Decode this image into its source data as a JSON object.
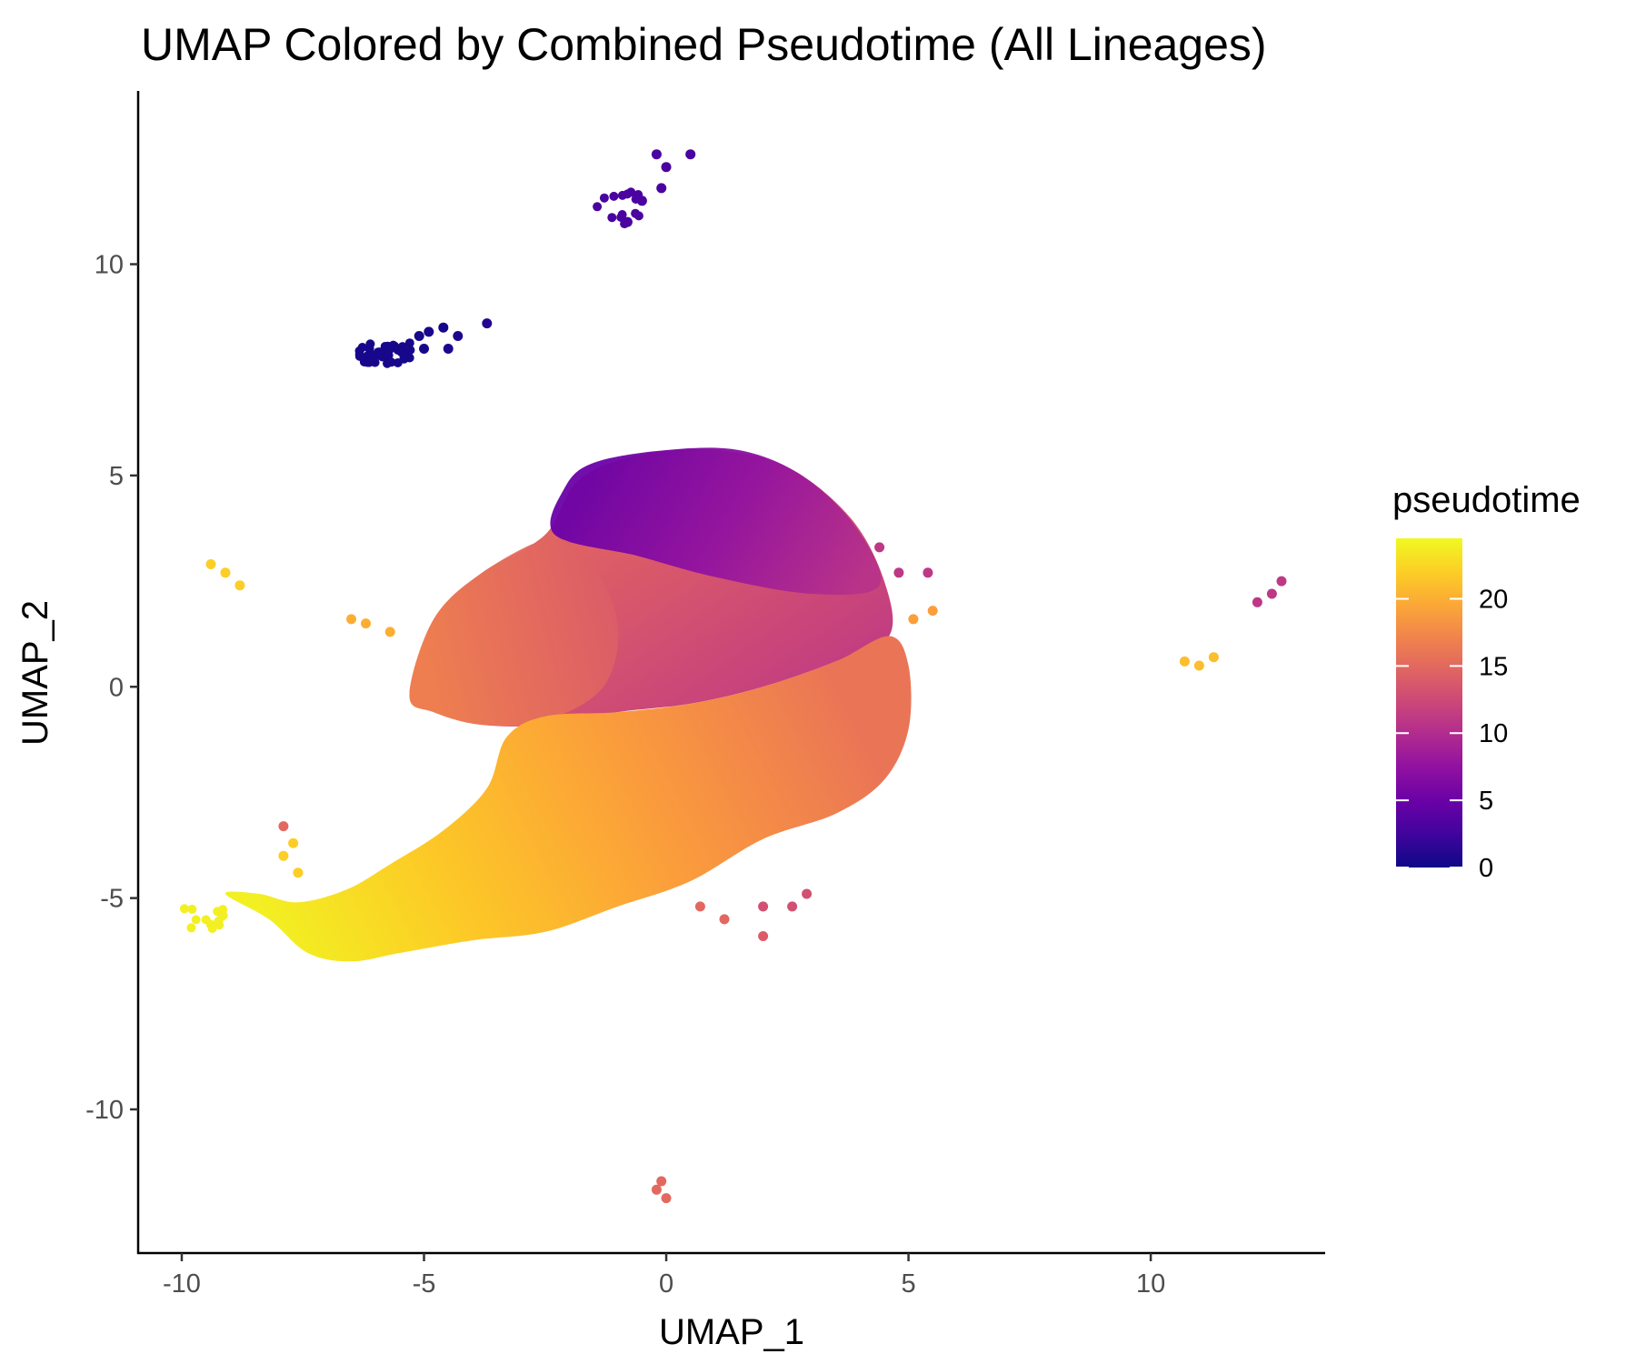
{
  "chart_data": {
    "type": "scatter",
    "title": "UMAP Colored by Combined Pseudotime (All Lineages)",
    "xlabel": "UMAP_1",
    "ylabel": "UMAP_2",
    "xlim": [
      -10.9,
      13.6
    ],
    "ylim": [
      -13.4,
      14.1
    ],
    "x_ticks": [
      -10,
      -5,
      0,
      5,
      10
    ],
    "x_tick_labels": [
      "-10",
      "-5",
      "0",
      "5",
      "10"
    ],
    "y_ticks": [
      -10,
      -5,
      0,
      5,
      10
    ],
    "y_tick_labels": [
      "-10",
      "-5",
      "0",
      "5",
      "10"
    ],
    "grid": false,
    "legend": {
      "title": "pseudotime",
      "placement": "right",
      "range": [
        0,
        24.5
      ],
      "ticks": [
        0,
        5,
        10,
        15,
        20
      ],
      "tick_labels": [
        "0",
        "5",
        "10",
        "15",
        "20"
      ]
    },
    "colormap": "plasma",
    "colormap_stops": [
      "#0d0887",
      "#46039f",
      "#7201a8",
      "#9c179e",
      "#bd3786",
      "#d8576b",
      "#ed7953",
      "#fb9f3a",
      "#fdca26",
      "#f0f921"
    ],
    "regions": [
      {
        "name": "main-cloud",
        "description_points": [
          {
            "x": -7.3,
            "y": -6.2,
            "pseudotime": 24
          },
          {
            "x": -5.0,
            "y": -4.8,
            "pseudotime": 21
          },
          {
            "x": -2.5,
            "y": -2.5,
            "pseudotime": 19
          },
          {
            "x": 0.0,
            "y": -1.0,
            "pseudotime": 17
          },
          {
            "x": 3.5,
            "y": -1.0,
            "pseudotime": 16
          },
          {
            "x": -4.0,
            "y": 1.0,
            "pseudotime": 15
          },
          {
            "x": 0.5,
            "y": 1.5,
            "pseudotime": 12
          },
          {
            "x": 0.5,
            "y": 4.5,
            "pseudotime": 6
          }
        ]
      }
    ],
    "points": [
      {
        "x": -4.9,
        "y": 8.4,
        "pseudotime": 0.5
      },
      {
        "x": -4.6,
        "y": 8.5,
        "pseudotime": 0.5
      },
      {
        "x": -5.1,
        "y": 8.3,
        "pseudotime": 0.5
      },
      {
        "x": -4.3,
        "y": 8.3,
        "pseudotime": 0.8
      },
      {
        "x": -3.7,
        "y": 8.6,
        "pseudotime": 1
      },
      {
        "x": -5.0,
        "y": 8.0,
        "pseudotime": 0.5
      },
      {
        "x": -4.5,
        "y": 8.0,
        "pseudotime": 0.8
      },
      {
        "x": -0.2,
        "y": 12.6,
        "pseudotime": 3
      },
      {
        "x": 0.5,
        "y": 12.6,
        "pseudotime": 3
      },
      {
        "x": 0.0,
        "y": 12.3,
        "pseudotime": 3
      },
      {
        "x": -0.5,
        "y": 11.5,
        "pseudotime": 3
      },
      {
        "x": -0.8,
        "y": 11.0,
        "pseudotime": 3
      },
      {
        "x": -0.1,
        "y": 11.8,
        "pseudotime": 3
      },
      {
        "x": -9.4,
        "y": 2.9,
        "pseudotime": 22
      },
      {
        "x": -9.1,
        "y": 2.7,
        "pseudotime": 22
      },
      {
        "x": -8.8,
        "y": 2.4,
        "pseudotime": 22
      },
      {
        "x": -6.5,
        "y": 1.6,
        "pseudotime": 20
      },
      {
        "x": -6.2,
        "y": 1.5,
        "pseudotime": 20
      },
      {
        "x": -5.7,
        "y": 1.3,
        "pseudotime": 20
      },
      {
        "x": 10.7,
        "y": 0.6,
        "pseudotime": 21
      },
      {
        "x": 11.0,
        "y": 0.5,
        "pseudotime": 21
      },
      {
        "x": 11.3,
        "y": 0.7,
        "pseudotime": 21
      },
      {
        "x": 12.2,
        "y": 2.0,
        "pseudotime": 11
      },
      {
        "x": 12.5,
        "y": 2.2,
        "pseudotime": 11
      },
      {
        "x": 12.7,
        "y": 2.5,
        "pseudotime": 11
      },
      {
        "x": -0.1,
        "y": -11.7,
        "pseudotime": 15
      },
      {
        "x": -0.2,
        "y": -11.9,
        "pseudotime": 15
      },
      {
        "x": 0.0,
        "y": -12.1,
        "pseudotime": 15
      },
      {
        "x": -7.9,
        "y": -3.3,
        "pseudotime": 15
      },
      {
        "x": -7.7,
        "y": -3.7,
        "pseudotime": 22
      },
      {
        "x": -7.9,
        "y": -4.0,
        "pseudotime": 22
      },
      {
        "x": -7.6,
        "y": -4.4,
        "pseudotime": 22
      },
      {
        "x": 0.7,
        "y": -5.2,
        "pseudotime": 15
      },
      {
        "x": 1.2,
        "y": -5.5,
        "pseudotime": 15
      },
      {
        "x": 2.0,
        "y": -5.2,
        "pseudotime": 13
      },
      {
        "x": 2.6,
        "y": -5.2,
        "pseudotime": 13
      },
      {
        "x": 2.9,
        "y": -4.9,
        "pseudotime": 13
      },
      {
        "x": 2.0,
        "y": -5.9,
        "pseudotime": 14
      },
      {
        "x": 4.4,
        "y": 3.3,
        "pseudotime": 11
      },
      {
        "x": 4.8,
        "y": 2.7,
        "pseudotime": 11
      },
      {
        "x": 5.4,
        "y": 2.7,
        "pseudotime": 11
      },
      {
        "x": 5.1,
        "y": 1.6,
        "pseudotime": 19
      },
      {
        "x": 5.5,
        "y": 1.8,
        "pseudotime": 19
      }
    ]
  }
}
